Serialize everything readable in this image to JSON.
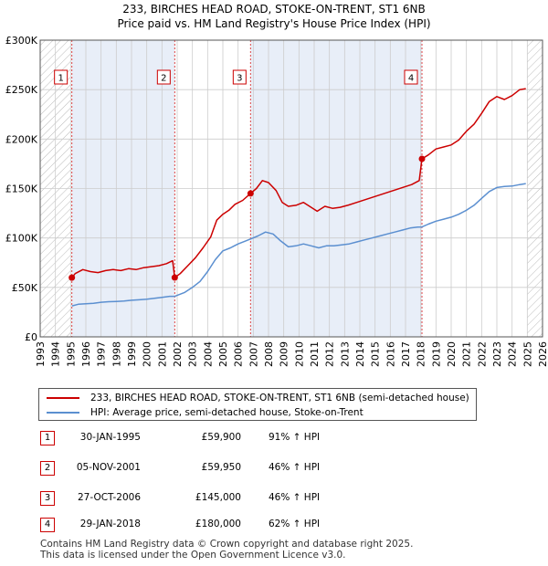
{
  "title_line1": "233, BIRCHES HEAD ROAD, STOKE-ON-TRENT, ST1 6NB",
  "title_line2": "Price paid vs. HM Land Registry's House Price Index (HPI)",
  "colors": {
    "property": "#cc0000",
    "hpi": "#5b8fd0",
    "shade": "#e8eef8",
    "grid": "#cccccc"
  },
  "chart_data": {
    "type": "line",
    "title": "233, BIRCHES HEAD ROAD, STOKE-ON-TRENT, ST1 6NB — Price paid vs. HM Land Registry's House Price Index (HPI)",
    "xlim": [
      1993,
      2026
    ],
    "ylim": [
      0,
      300000
    ],
    "x_ticks": [
      1993,
      1994,
      1995,
      1996,
      1997,
      1998,
      1999,
      2000,
      2001,
      2002,
      2003,
      2004,
      2005,
      2006,
      2007,
      2008,
      2009,
      2010,
      2011,
      2012,
      2013,
      2014,
      2015,
      2016,
      2017,
      2018,
      2019,
      2020,
      2021,
      2022,
      2023,
      2024,
      2025,
      2026
    ],
    "y_ticks": [
      0,
      50000,
      100000,
      150000,
      200000,
      250000,
      300000
    ],
    "y_tick_labels": [
      "£0",
      "£50K",
      "£100K",
      "£150K",
      "£200K",
      "£250K",
      "£300K"
    ],
    "hatch_before": 1995.0,
    "hatch_after": 2025.0,
    "shaded_ranges": [
      [
        1995.08,
        2001.84
      ],
      [
        2006.82,
        2018.08
      ]
    ],
    "series": [
      {
        "name": "233, BIRCHES HEAD ROAD, STOKE-ON-TRENT, ST1 6NB (semi-detached house)",
        "color": "#cc0000",
        "points": [
          [
            1995.08,
            59900
          ],
          [
            1995.3,
            64000
          ],
          [
            1995.8,
            68000
          ],
          [
            1996.3,
            66000
          ],
          [
            1996.8,
            65000
          ],
          [
            1997.3,
            67000
          ],
          [
            1997.8,
            68000
          ],
          [
            1998.3,
            67000
          ],
          [
            1998.8,
            69000
          ],
          [
            1999.3,
            68000
          ],
          [
            1999.8,
            70000
          ],
          [
            2000.3,
            71000
          ],
          [
            2000.8,
            72000
          ],
          [
            2001.3,
            74000
          ],
          [
            2001.7,
            77000
          ],
          [
            2001.84,
            59950
          ],
          [
            2002.2,
            64000
          ],
          [
            2002.7,
            72000
          ],
          [
            2003.2,
            80000
          ],
          [
            2003.7,
            90000
          ],
          [
            2004.2,
            101000
          ],
          [
            2004.6,
            118000
          ],
          [
            2005.0,
            124000
          ],
          [
            2005.4,
            128000
          ],
          [
            2005.8,
            134000
          ],
          [
            2006.3,
            138000
          ],
          [
            2006.82,
            145000
          ],
          [
            2007.2,
            150000
          ],
          [
            2007.6,
            158000
          ],
          [
            2008.0,
            156000
          ],
          [
            2008.5,
            148000
          ],
          [
            2008.9,
            136000
          ],
          [
            2009.3,
            132000
          ],
          [
            2009.8,
            133000
          ],
          [
            2010.3,
            136000
          ],
          [
            2010.8,
            131000
          ],
          [
            2011.2,
            127000
          ],
          [
            2011.7,
            132000
          ],
          [
            2012.2,
            130000
          ],
          [
            2012.7,
            131000
          ],
          [
            2013.2,
            133000
          ],
          [
            2013.8,
            136000
          ],
          [
            2014.4,
            139000
          ],
          [
            2015.0,
            142000
          ],
          [
            2015.6,
            145000
          ],
          [
            2016.2,
            148000
          ],
          [
            2016.8,
            151000
          ],
          [
            2017.4,
            154000
          ],
          [
            2017.9,
            158000
          ],
          [
            2018.08,
            180000
          ],
          [
            2018.5,
            184000
          ],
          [
            2019.0,
            190000
          ],
          [
            2019.5,
            192000
          ],
          [
            2020.0,
            194000
          ],
          [
            2020.5,
            199000
          ],
          [
            2021.0,
            208000
          ],
          [
            2021.5,
            215000
          ],
          [
            2022.0,
            226000
          ],
          [
            2022.5,
            238000
          ],
          [
            2023.0,
            243000
          ],
          [
            2023.5,
            240000
          ],
          [
            2024.0,
            244000
          ],
          [
            2024.5,
            250000
          ],
          [
            2024.9,
            251000
          ]
        ]
      },
      {
        "name": "HPI: Average price, semi-detached house, Stoke-on-Trent",
        "color": "#5b8fd0",
        "points": [
          [
            1995.08,
            31300
          ],
          [
            1995.5,
            33000
          ],
          [
            1996.0,
            33500
          ],
          [
            1996.5,
            34000
          ],
          [
            1997.0,
            35000
          ],
          [
            1997.5,
            35500
          ],
          [
            1998.0,
            35800
          ],
          [
            1998.5,
            36200
          ],
          [
            1999.0,
            37000
          ],
          [
            1999.5,
            37500
          ],
          [
            2000.0,
            38000
          ],
          [
            2000.5,
            39000
          ],
          [
            2001.0,
            40000
          ],
          [
            2001.5,
            41000
          ],
          [
            2001.84,
            41000
          ],
          [
            2002.5,
            45000
          ],
          [
            2003.0,
            50000
          ],
          [
            2003.5,
            56000
          ],
          [
            2004.0,
            66000
          ],
          [
            2004.5,
            78000
          ],
          [
            2005.0,
            87000
          ],
          [
            2005.5,
            90000
          ],
          [
            2006.0,
            94000
          ],
          [
            2006.5,
            97000
          ],
          [
            2006.82,
            99000
          ],
          [
            2007.3,
            102000
          ],
          [
            2007.8,
            106000
          ],
          [
            2008.3,
            104000
          ],
          [
            2008.8,
            97000
          ],
          [
            2009.3,
            91000
          ],
          [
            2009.8,
            92000
          ],
          [
            2010.3,
            94000
          ],
          [
            2010.8,
            92000
          ],
          [
            2011.3,
            90000
          ],
          [
            2011.8,
            92000
          ],
          [
            2012.3,
            92000
          ],
          [
            2012.8,
            93000
          ],
          [
            2013.3,
            94000
          ],
          [
            2013.8,
            96000
          ],
          [
            2014.3,
            98000
          ],
          [
            2014.8,
            100000
          ],
          [
            2015.3,
            102000
          ],
          [
            2015.8,
            104000
          ],
          [
            2016.3,
            106000
          ],
          [
            2016.8,
            108000
          ],
          [
            2017.3,
            110000
          ],
          [
            2017.8,
            111000
          ],
          [
            2018.08,
            111100
          ],
          [
            2018.5,
            114000
          ],
          [
            2019.0,
            117000
          ],
          [
            2019.5,
            119000
          ],
          [
            2020.0,
            121000
          ],
          [
            2020.5,
            124000
          ],
          [
            2021.0,
            128000
          ],
          [
            2021.5,
            133000
          ],
          [
            2022.0,
            140000
          ],
          [
            2022.5,
            147000
          ],
          [
            2023.0,
            151000
          ],
          [
            2023.5,
            152000
          ],
          [
            2024.0,
            152500
          ],
          [
            2024.5,
            154000
          ],
          [
            2024.9,
            155000
          ]
        ]
      }
    ],
    "sales": [
      {
        "label": "1",
        "x": 1995.08,
        "price": 59900
      },
      {
        "label": "2",
        "x": 2001.84,
        "price": 59950
      },
      {
        "label": "3",
        "x": 2006.82,
        "price": 145000
      },
      {
        "label": "4",
        "x": 2018.08,
        "price": 180000
      }
    ]
  },
  "legend": {
    "property_label": "233, BIRCHES HEAD ROAD, STOKE-ON-TRENT, ST1 6NB (semi-detached house)",
    "hpi_label": "HPI: Average price, semi-detached house, Stoke-on-Trent"
  },
  "sales_table": [
    {
      "num": "1",
      "date": "30-JAN-1995",
      "price": "£59,900",
      "hpi": "91% ↑ HPI"
    },
    {
      "num": "2",
      "date": "05-NOV-2001",
      "price": "£59,950",
      "hpi": "46% ↑ HPI"
    },
    {
      "num": "3",
      "date": "27-OCT-2006",
      "price": "£145,000",
      "hpi": "46% ↑ HPI"
    },
    {
      "num": "4",
      "date": "29-JAN-2018",
      "price": "£180,000",
      "hpi": "62% ↑ HPI"
    }
  ],
  "footer_line1": "Contains HM Land Registry data © Crown copyright and database right 2025.",
  "footer_line2": "This data is licensed under the Open Government Licence v3.0."
}
